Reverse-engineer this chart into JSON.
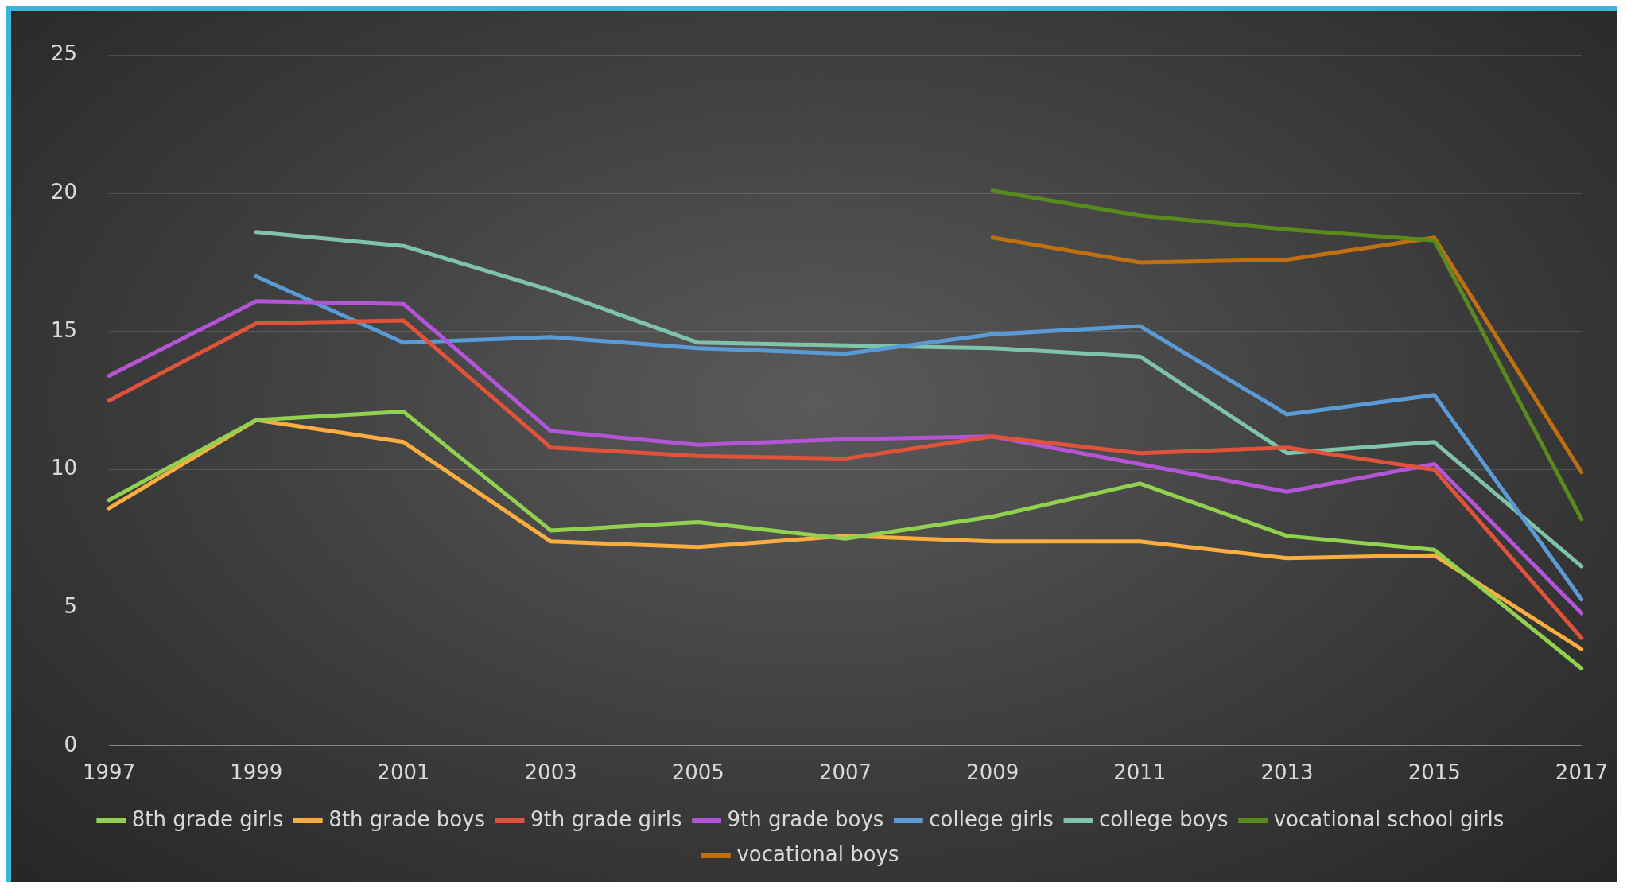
{
  "chart_data": {
    "type": "line",
    "categories": [
      "1997",
      "1999",
      "2001",
      "2003",
      "2005",
      "2007",
      "2009",
      "2011",
      "2013",
      "2015",
      "2017"
    ],
    "ylim": [
      0,
      25
    ],
    "yticks": [
      0,
      5,
      10,
      15,
      20,
      25
    ],
    "grid": "y",
    "legend": "bottom",
    "marker": "none",
    "series": [
      {
        "name": "8th grade girls",
        "color": "#92d050",
        "values": [
          8.9,
          11.8,
          12.1,
          7.8,
          8.1,
          7.5,
          8.3,
          9.5,
          7.6,
          7.1,
          2.8
        ]
      },
      {
        "name": "8th grade boys",
        "color": "#fbad3f",
        "values": [
          8.6,
          11.8,
          11.0,
          7.4,
          7.2,
          7.6,
          7.4,
          7.4,
          6.8,
          6.9,
          3.5
        ]
      },
      {
        "name": "9th grade girls",
        "color": "#e0533a",
        "values": [
          12.5,
          15.3,
          15.4,
          10.8,
          10.5,
          10.4,
          11.2,
          10.6,
          10.8,
          10.0,
          3.9
        ]
      },
      {
        "name": "9th grade boys",
        "color": "#b455d8",
        "values": [
          13.4,
          16.1,
          16.0,
          11.4,
          10.9,
          11.1,
          11.2,
          10.2,
          9.2,
          10.2,
          4.8
        ]
      },
      {
        "name": "college girls",
        "color": "#5b9bd5",
        "values": [
          null,
          17.0,
          14.6,
          14.8,
          14.4,
          14.2,
          14.9,
          15.2,
          12.0,
          12.7,
          5.3
        ]
      },
      {
        "name": "college boys",
        "color": "#7fc4a8",
        "values": [
          null,
          18.6,
          18.1,
          16.5,
          14.6,
          14.5,
          14.4,
          14.1,
          10.6,
          11.0,
          6.5
        ]
      },
      {
        "name": "vocational school girls",
        "color": "#5a8a1e",
        "values": [
          null,
          null,
          null,
          null,
          null,
          null,
          20.1,
          19.2,
          18.7,
          18.3,
          8.2
        ]
      },
      {
        "name": "vocational boys",
        "color": "#c07010",
        "values": [
          null,
          null,
          null,
          null,
          null,
          null,
          18.4,
          17.5,
          17.6,
          18.4,
          9.9
        ]
      }
    ]
  }
}
